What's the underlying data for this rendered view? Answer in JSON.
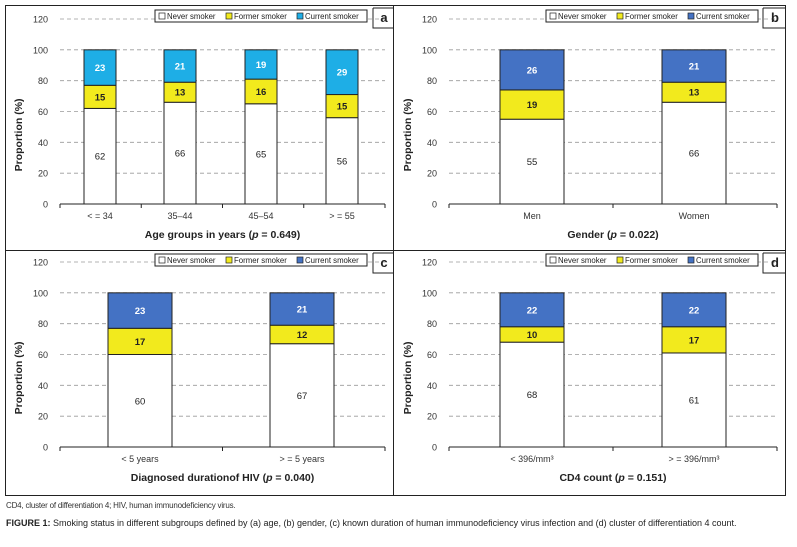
{
  "legend": {
    "never": "Never smoker",
    "former": "Former smoker",
    "current": "Current smoker"
  },
  "colors": {
    "never": "#ffffff",
    "former": "#f2ea1d",
    "current_a": "#1eaee6",
    "current": "#4472c4",
    "grid": "#9a9a9a",
    "axis": "#222222"
  },
  "footnote": "CD4, cluster of differentiation 4; HIV, human immunodeficiency virus.",
  "caption": {
    "label": "FIGURE 1:",
    "text": " Smoking status in different subgroups defined by (a) age, (b) gender, (c) known duration of human immunodeficiency virus infection and (d) cluster of differentiation 4 count."
  },
  "chart_data": [
    {
      "panel": "a",
      "type": "bar",
      "stacked": true,
      "title": "",
      "xlabel": "Age groups in years (p = 0.649)",
      "xlabel_parts": [
        "Age groups in years (",
        "p",
        " = 0.649)"
      ],
      "ylabel": "Proportion (%)",
      "ylim": [
        0,
        120
      ],
      "yticks": [
        0,
        20,
        40,
        60,
        80,
        100,
        120
      ],
      "grid": true,
      "legend_position": "top-right",
      "categories": [
        "< = 34",
        "35–44",
        "45–54",
        "> = 55"
      ],
      "series": [
        {
          "name": "Never smoker",
          "values": [
            62,
            66,
            65,
            56
          ]
        },
        {
          "name": "Former smoker",
          "values": [
            15,
            13,
            16,
            15
          ]
        },
        {
          "name": "Current smoker",
          "values": [
            23,
            21,
            19,
            29
          ]
        }
      ]
    },
    {
      "panel": "b",
      "type": "bar",
      "stacked": true,
      "title": "",
      "xlabel": "Gender (p = 0.022)",
      "xlabel_parts": [
        "Gender (",
        "p",
        " = 0.022)"
      ],
      "ylabel": "Proportion (%)",
      "ylim": [
        0,
        120
      ],
      "yticks": [
        0,
        20,
        40,
        60,
        80,
        100,
        120
      ],
      "grid": true,
      "legend_position": "top-right",
      "categories": [
        "Men",
        "Women"
      ],
      "series": [
        {
          "name": "Never smoker",
          "values": [
            55,
            66
          ]
        },
        {
          "name": "Former smoker",
          "values": [
            19,
            13
          ]
        },
        {
          "name": "Current smoker",
          "values": [
            26,
            21
          ]
        }
      ]
    },
    {
      "panel": "c",
      "type": "bar",
      "stacked": true,
      "title": "",
      "xlabel": "Diagnosed duration of HIV (p = 0.040)",
      "xlabel_parts": [
        "Diagnosed durationof HIV (",
        "p",
        " = 0.040)"
      ],
      "ylabel": "Proportion (%)",
      "ylim": [
        0,
        120
      ],
      "yticks": [
        0,
        20,
        40,
        60,
        80,
        100,
        120
      ],
      "grid": true,
      "legend_position": "top-right",
      "categories": [
        "< 5 years",
        "> = 5 years"
      ],
      "series": [
        {
          "name": "Never smoker",
          "values": [
            60,
            67
          ]
        },
        {
          "name": "Former smoker",
          "values": [
            17,
            12
          ]
        },
        {
          "name": "Current smoker",
          "values": [
            23,
            21
          ]
        }
      ]
    },
    {
      "panel": "d",
      "type": "bar",
      "stacked": true,
      "title": "",
      "xlabel": "CD4 count (p = 0.151)",
      "xlabel_parts": [
        "CD4 count (",
        "p",
        " = 0.151)"
      ],
      "ylabel": "Proportion (%)",
      "ylim": [
        0,
        120
      ],
      "yticks": [
        0,
        20,
        40,
        60,
        80,
        100,
        120
      ],
      "grid": true,
      "legend_position": "top-right",
      "categories": [
        "< 396/mm³",
        "> = 396/mm³"
      ],
      "series": [
        {
          "name": "Never smoker",
          "values": [
            68,
            61
          ]
        },
        {
          "name": "Former smoker",
          "values": [
            10,
            17
          ]
        },
        {
          "name": "Current smoker",
          "values": [
            22,
            22
          ]
        }
      ]
    }
  ]
}
